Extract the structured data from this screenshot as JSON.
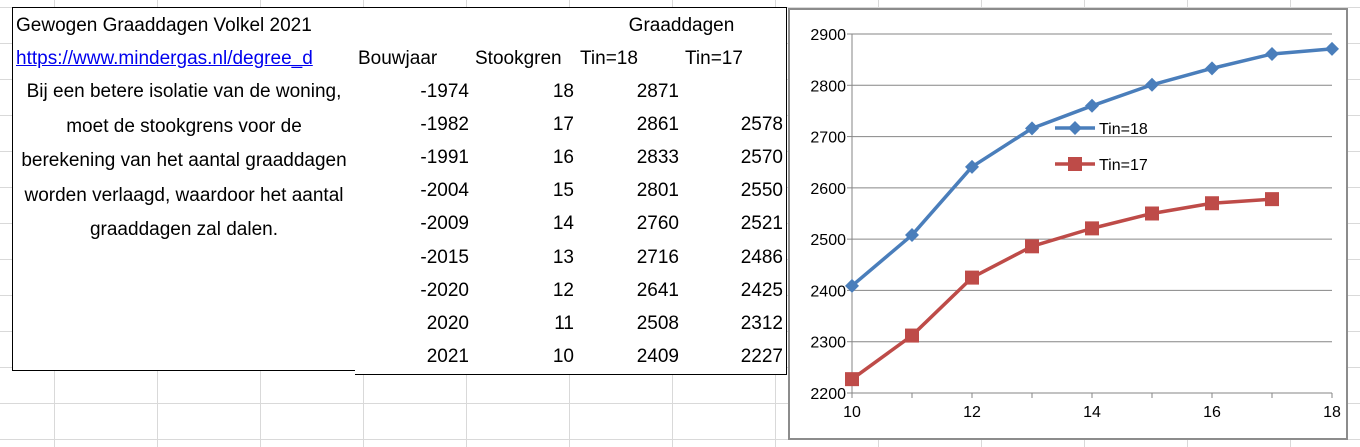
{
  "sheet": {
    "title": "Gewogen Graaddagen Volkel 2021",
    "link": "https://www.mindergas.nl/degree_d",
    "note": "Bij een betere isolatie van de woning, moet de stookgrens voor de berekening van het aantal graaddagen worden verlaagd, waardoor het aantal graaddagen zal dalen.",
    "group_header": "Graaddagen",
    "headers": {
      "bouwjaar": "Bouwjaar",
      "stookgrens": "Stookgren",
      "tin18": "Tin=18",
      "tin17": "Tin=17"
    },
    "rows": [
      {
        "bouwjaar": "-1974",
        "stookgrens": "18",
        "tin18": "2871",
        "tin17": ""
      },
      {
        "bouwjaar": "-1982",
        "stookgrens": "17",
        "tin18": "2861",
        "tin17": "2578"
      },
      {
        "bouwjaar": "-1991",
        "stookgrens": "16",
        "tin18": "2833",
        "tin17": "2570"
      },
      {
        "bouwjaar": "-2004",
        "stookgrens": "15",
        "tin18": "2801",
        "tin17": "2550"
      },
      {
        "bouwjaar": "-2009",
        "stookgrens": "14",
        "tin18": "2760",
        "tin17": "2521"
      },
      {
        "bouwjaar": "-2015",
        "stookgrens": "13",
        "tin18": "2716",
        "tin17": "2486"
      },
      {
        "bouwjaar": "-2020",
        "stookgrens": "12",
        "tin18": "2641",
        "tin17": "2425"
      },
      {
        "bouwjaar": "2020",
        "stookgrens": "11",
        "tin18": "2508",
        "tin17": "2312"
      },
      {
        "bouwjaar": "2021",
        "stookgrens": "10",
        "tin18": "2409",
        "tin17": "2227"
      }
    ]
  },
  "chart_data": {
    "type": "line",
    "title": "",
    "xlabel": "",
    "ylabel": "",
    "xlim": [
      10,
      18
    ],
    "ylim": [
      2200,
      2900
    ],
    "xticks": [
      10,
      12,
      14,
      16,
      18
    ],
    "yticks": [
      2200,
      2300,
      2400,
      2500,
      2600,
      2700,
      2800,
      2900
    ],
    "grid": "horizontal",
    "legend": "middle-right",
    "series": [
      {
        "name": "Tin=18",
        "color": "#4a7ebb",
        "marker": "diamond",
        "points": [
          [
            10,
            2409
          ],
          [
            11,
            2508
          ],
          [
            12,
            2641
          ],
          [
            13,
            2716
          ],
          [
            14,
            2760
          ],
          [
            15,
            2801
          ],
          [
            16,
            2833
          ],
          [
            17,
            2861
          ],
          [
            18,
            2871
          ]
        ]
      },
      {
        "name": "Tin=17",
        "color": "#be4b48",
        "marker": "square",
        "points": [
          [
            10,
            2227
          ],
          [
            11,
            2312
          ],
          [
            12,
            2425
          ],
          [
            13,
            2486
          ],
          [
            14,
            2521
          ],
          [
            15,
            2550
          ],
          [
            16,
            2570
          ],
          [
            17,
            2578
          ]
        ]
      }
    ]
  }
}
